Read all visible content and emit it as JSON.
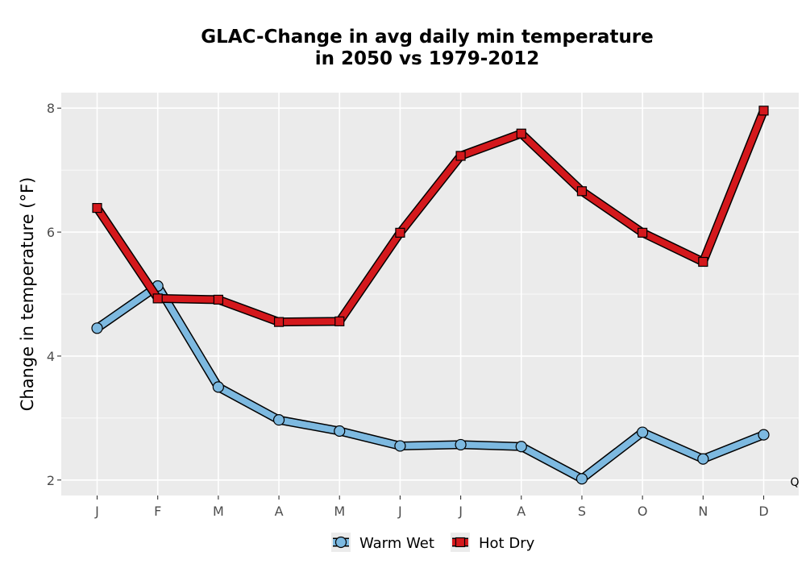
{
  "chart_data": {
    "type": "line",
    "title_line1": "GLAC-Change in avg daily min temperature",
    "title_line2": "in 2050 vs 1979-2012",
    "xlabel": "",
    "ylabel": "Change in temperature (°F)",
    "categories": [
      "J",
      "F",
      "M",
      "A",
      "M",
      "J",
      "J",
      "A",
      "S",
      "O",
      "N",
      "D"
    ],
    "ylim": [
      1.75,
      8.25
    ],
    "yticks": [
      2,
      4,
      6,
      8
    ],
    "grid": true,
    "legend_position": "bottom",
    "corner_mark": "Q",
    "series": [
      {
        "name": "Warm Wet",
        "color": "#7db9e0",
        "marker": "circle",
        "values": [
          4.45,
          5.13,
          3.5,
          2.97,
          2.79,
          2.55,
          2.57,
          2.54,
          2.02,
          2.77,
          2.34,
          2.73
        ]
      },
      {
        "name": "Hot Dry",
        "color": "#d4181c",
        "marker": "square",
        "values": [
          6.39,
          4.93,
          4.91,
          4.55,
          4.56,
          5.99,
          7.23,
          7.59,
          6.66,
          5.99,
          5.52,
          7.96
        ]
      }
    ]
  }
}
